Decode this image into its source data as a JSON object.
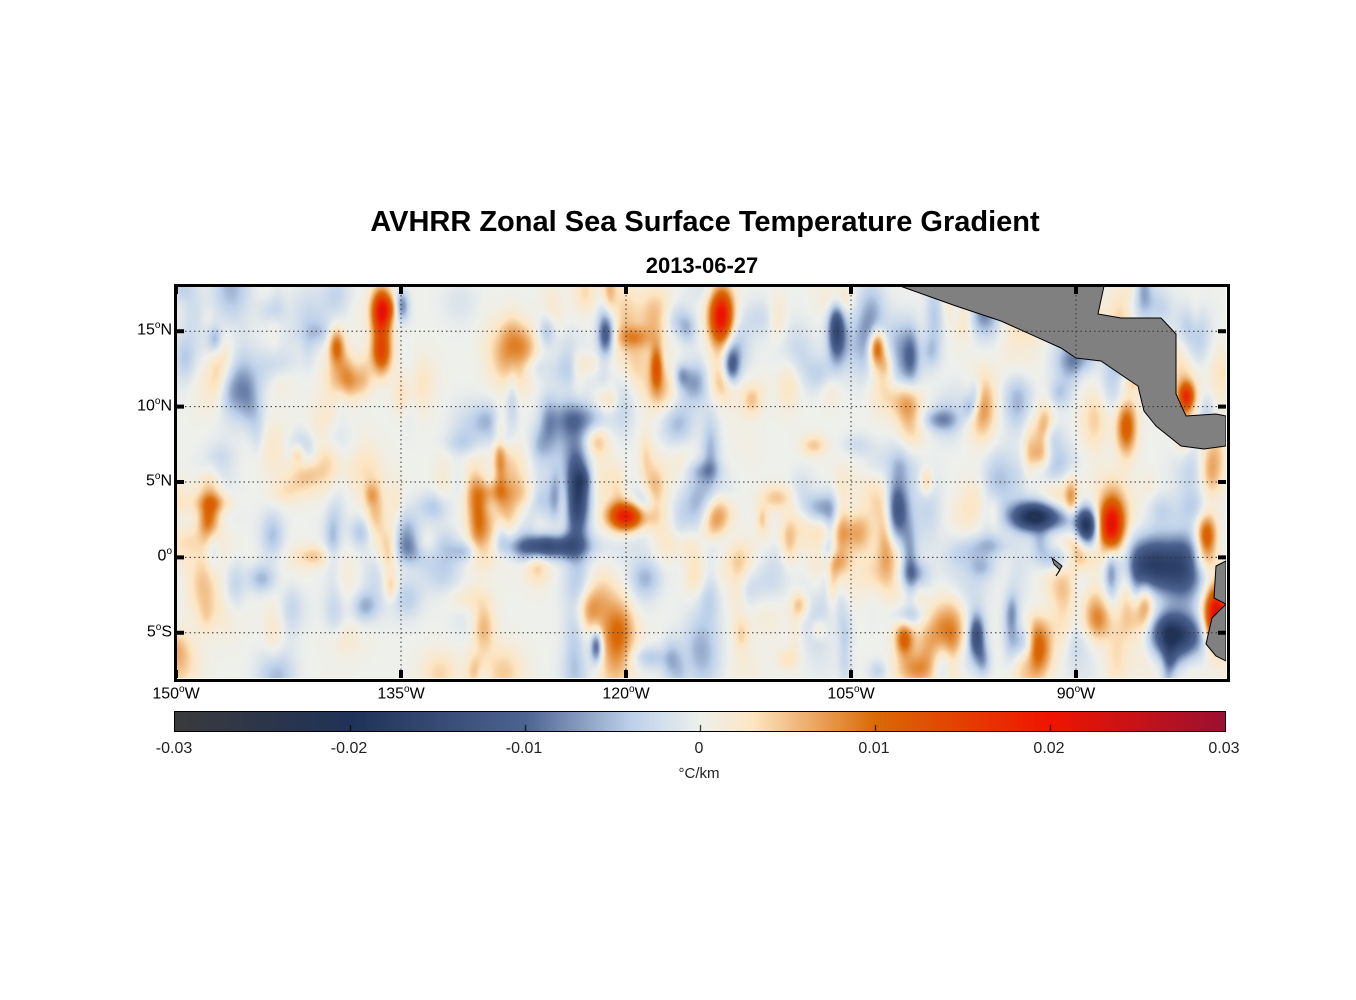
{
  "chart_data": {
    "type": "heatmap",
    "title": "AVHRR Zonal Sea Surface Temperature Gradient",
    "subtitle": "2013-06-27",
    "lon_range": [
      -150,
      -80
    ],
    "lat_range": [
      -8,
      18
    ],
    "xticks": [
      {
        "deg": "150",
        "hem": "W"
      },
      {
        "deg": "135",
        "hem": "W"
      },
      {
        "deg": "120",
        "hem": "W"
      },
      {
        "deg": "105",
        "hem": "W"
      },
      {
        "deg": "90",
        "hem": "W"
      }
    ],
    "xtick_values": [
      -150,
      -135,
      -120,
      -105,
      -90
    ],
    "yticks": [
      {
        "deg": "15",
        "hem": "N"
      },
      {
        "deg": "10",
        "hem": "N"
      },
      {
        "deg": "5",
        "hem": "N"
      },
      {
        "deg": "0",
        "hem": ""
      },
      {
        "deg": "5",
        "hem": "S"
      }
    ],
    "ytick_values": [
      15,
      10,
      5,
      0,
      -5
    ],
    "grid": "dotted",
    "colorbar": {
      "range": [
        -0.03,
        0.03
      ],
      "ticks": [
        "-0.03",
        "-0.02",
        "-0.01",
        "0",
        "0.01",
        "0.02",
        "0.03"
      ],
      "label": "°C/km",
      "colors": [
        "#3a3a3c",
        "#1f3258",
        "#4d6391",
        "#bcd0ea",
        "#eef0ec",
        "#fde6c4",
        "#d96a05",
        "#f01400",
        "#9c1030"
      ]
    },
    "land_color": "#808080"
  }
}
